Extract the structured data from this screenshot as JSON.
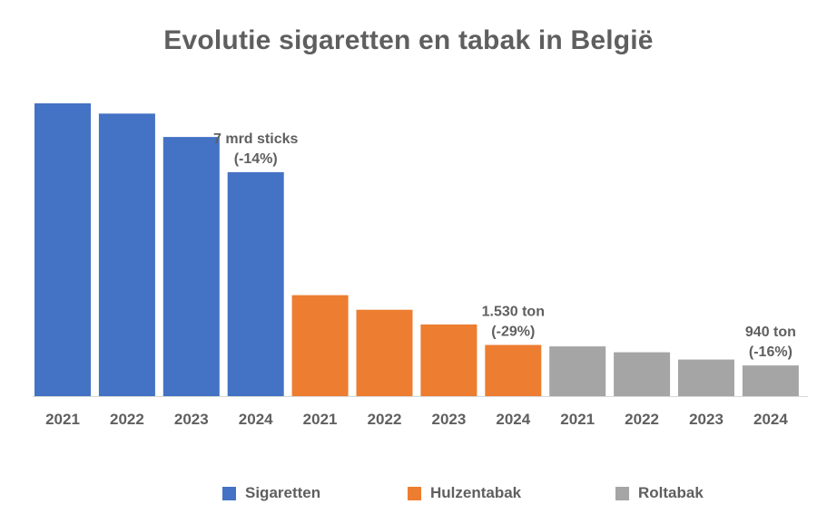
{
  "chart_data": {
    "type": "bar",
    "title": "Evolutie sigaretten en tabak in België",
    "categories": [
      "2021",
      "2022",
      "2023",
      "2024"
    ],
    "series": [
      {
        "name": "Sigaretten",
        "color": "#4472c4",
        "values": [
          100,
          96.5,
          88.5,
          76.5
        ],
        "annotation": [
          "7 mrd sticks",
          "(-14%)"
        ]
      },
      {
        "name": "Hulzentabak",
        "color": "#ed7d31",
        "values": [
          34.5,
          29.5,
          24.5,
          17.5
        ],
        "annotation": [
          "1.530 ton",
          "(-29%)"
        ]
      },
      {
        "name": "Roltabak",
        "color": "#a5a5a5",
        "values": [
          17,
          15,
          12.5,
          10.5
        ],
        "annotation": [
          "940 ton",
          "(-16%)"
        ]
      }
    ],
    "ylim": [
      0,
      100
    ],
    "grid": false,
    "legend": "bottom"
  }
}
